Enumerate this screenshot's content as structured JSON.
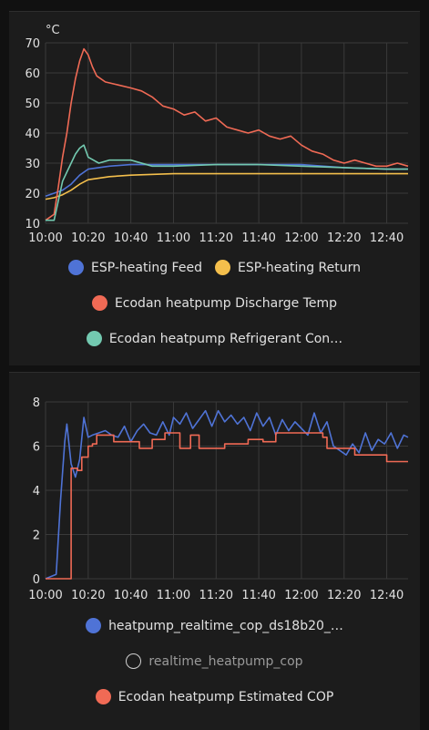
{
  "chart_data": [
    {
      "type": "line",
      "title": "",
      "unit": "°C",
      "xlabel": "",
      "ylabel": "",
      "ylim": [
        10,
        70
      ],
      "yticks": [
        10,
        20,
        30,
        40,
        50,
        60,
        70
      ],
      "xlim": [
        "10:00",
        "12:50"
      ],
      "xticks": [
        "10:00",
        "10:20",
        "10:40",
        "11:00",
        "11:20",
        "11:40",
        "12:00",
        "12:20",
        "12:40"
      ],
      "grid": true,
      "legend_position": "bottom",
      "series": [
        {
          "name": "ESP-heating Feed",
          "color": "#4f73d6",
          "visible": true,
          "x": [
            "10:00",
            "10:04",
            "10:08",
            "10:12",
            "10:16",
            "10:20",
            "10:30",
            "10:40",
            "10:50",
            "11:00",
            "11:20",
            "11:40",
            "12:00",
            "12:20",
            "12:40",
            "12:50"
          ],
          "y": [
            19,
            20,
            21,
            23,
            26,
            28,
            29,
            29.5,
            29.5,
            29.5,
            29.5,
            29.5,
            29.5,
            28.5,
            28,
            28
          ]
        },
        {
          "name": "ESP-heating Return",
          "color": "#f4bf4c",
          "visible": true,
          "x": [
            "10:00",
            "10:04",
            "10:08",
            "10:12",
            "10:16",
            "10:20",
            "10:30",
            "10:40",
            "11:00",
            "11:20",
            "11:40",
            "12:00",
            "12:20",
            "12:40",
            "12:50"
          ],
          "y": [
            18,
            18.5,
            19.5,
            21,
            23,
            24.5,
            25.5,
            26,
            26.5,
            26.5,
            26.5,
            26.5,
            26.5,
            26.5,
            26.5
          ]
        },
        {
          "name": "Ecodan heatpump Discharge Temp",
          "color": "#f06a55",
          "visible": true,
          "x": [
            "10:00",
            "10:04",
            "10:06",
            "10:08",
            "10:10",
            "10:12",
            "10:14",
            "10:16",
            "10:18",
            "10:20",
            "10:22",
            "10:24",
            "10:28",
            "10:34",
            "10:40",
            "10:45",
            "10:50",
            "10:55",
            "11:00",
            "11:05",
            "11:10",
            "11:15",
            "11:20",
            "11:25",
            "11:30",
            "11:35",
            "11:40",
            "11:45",
            "11:50",
            "11:55",
            "12:00",
            "12:05",
            "12:10",
            "12:15",
            "12:20",
            "12:25",
            "12:30",
            "12:35",
            "12:40",
            "12:45",
            "12:50"
          ],
          "y": [
            11,
            13,
            22,
            32,
            40,
            50,
            58,
            64,
            68,
            66,
            62,
            59,
            57,
            56,
            55,
            54,
            52,
            49,
            48,
            46,
            47,
            44,
            45,
            42,
            41,
            40,
            41,
            39,
            38,
            39,
            36,
            34,
            33,
            31,
            30,
            31,
            30,
            29,
            29,
            30,
            29
          ]
        },
        {
          "name": "Ecodan heatpump Refrigerant Con…",
          "color": "#73c9b0",
          "visible": true,
          "x": [
            "10:00",
            "10:04",
            "10:08",
            "10:10",
            "10:12",
            "10:14",
            "10:16",
            "10:18",
            "10:20",
            "10:25",
            "10:30",
            "10:40",
            "10:50",
            "11:00",
            "11:20",
            "11:40",
            "12:00",
            "12:20",
            "12:40",
            "12:50"
          ],
          "y": [
            11,
            11,
            24,
            27,
            30,
            33,
            35,
            36,
            32,
            30,
            31,
            31,
            29,
            29,
            29.5,
            29.5,
            29,
            28.5,
            28,
            28
          ]
        }
      ]
    },
    {
      "type": "line",
      "title": "",
      "unit": "",
      "xlabel": "",
      "ylabel": "",
      "ylim": [
        0,
        8
      ],
      "yticks": [
        0,
        2,
        4,
        6,
        8
      ],
      "xlim": [
        "10:00",
        "12:50"
      ],
      "xticks": [
        "10:00",
        "10:20",
        "10:40",
        "11:00",
        "11:20",
        "11:40",
        "12:00",
        "12:20",
        "12:40"
      ],
      "grid": true,
      "legend_position": "bottom",
      "series": [
        {
          "name": "heatpump_realtime_cop_ds18b20_…",
          "color": "#4f73d6",
          "visible": true,
          "x": [
            "10:00",
            "10:05",
            "10:07",
            "10:09",
            "10:10",
            "10:12",
            "10:14",
            "10:16",
            "10:18",
            "10:20",
            "10:22",
            "10:25",
            "10:28",
            "10:31",
            "10:34",
            "10:37",
            "10:40",
            "10:43",
            "10:46",
            "10:49",
            "10:52",
            "10:55",
            "10:58",
            "11:00",
            "11:03",
            "11:06",
            "11:09",
            "11:12",
            "11:15",
            "11:18",
            "11:21",
            "11:24",
            "11:27",
            "11:30",
            "11:33",
            "11:36",
            "11:39",
            "11:42",
            "11:45",
            "11:48",
            "11:51",
            "11:54",
            "11:57",
            "12:00",
            "12:03",
            "12:06",
            "12:09",
            "12:12",
            "12:15",
            "12:18",
            "12:21",
            "12:24",
            "12:27",
            "12:30",
            "12:33",
            "12:36",
            "12:39",
            "12:42",
            "12:45",
            "12:48",
            "12:50"
          ],
          "y": [
            0,
            0.2,
            3.5,
            6.2,
            7,
            5.2,
            4.6,
            5.4,
            7.3,
            6.4,
            6.5,
            6.6,
            6.7,
            6.5,
            6.4,
            6.9,
            6.2,
            6.7,
            7,
            6.6,
            6.5,
            7.1,
            6.5,
            7.3,
            7,
            7.5,
            6.8,
            7.2,
            7.6,
            6.9,
            7.6,
            7.1,
            7.4,
            7,
            7.3,
            6.7,
            7.5,
            6.9,
            7.3,
            6.5,
            7.2,
            6.7,
            7.1,
            6.8,
            6.5,
            7.5,
            6.6,
            7.1,
            6,
            5.8,
            5.6,
            6.1,
            5.7,
            6.6,
            5.8,
            6.3,
            6.1,
            6.6,
            5.9,
            6.5,
            6.4
          ]
        },
        {
          "name": "realtime_heatpump_cop",
          "color": "#d0d0d0",
          "visible": false,
          "x": [],
          "y": []
        },
        {
          "name": "Ecodan heatpump Estimated COP",
          "color": "#f06a55",
          "visible": true,
          "x": [
            "10:00",
            "10:12",
            "10:12",
            "10:15",
            "10:15",
            "10:17",
            "10:17",
            "10:20",
            "10:20",
            "10:22",
            "10:22",
            "10:24",
            "10:24",
            "10:32",
            "10:32",
            "10:44",
            "10:44",
            "10:50",
            "10:50",
            "10:56",
            "10:56",
            "11:03",
            "11:03",
            "11:08",
            "11:08",
            "11:12",
            "11:12",
            "11:24",
            "11:24",
            "11:35",
            "11:35",
            "11:42",
            "11:42",
            "11:48",
            "11:48",
            "12:10",
            "12:10",
            "12:12",
            "12:12",
            "12:25",
            "12:25",
            "12:40",
            "12:40",
            "12:50"
          ],
          "y": [
            0,
            0,
            5,
            5,
            4.9,
            4.9,
            5.5,
            5.5,
            6,
            6,
            6.1,
            6.1,
            6.5,
            6.5,
            6.2,
            6.2,
            5.9,
            5.9,
            6.3,
            6.3,
            6.6,
            6.6,
            5.9,
            5.9,
            6.5,
            6.5,
            5.9,
            5.9,
            6.1,
            6.1,
            6.3,
            6.3,
            6.2,
            6.2,
            6.6,
            6.6,
            6.4,
            6.4,
            5.9,
            5.9,
            5.6,
            5.6,
            5.3,
            5.3
          ]
        }
      ]
    }
  ]
}
